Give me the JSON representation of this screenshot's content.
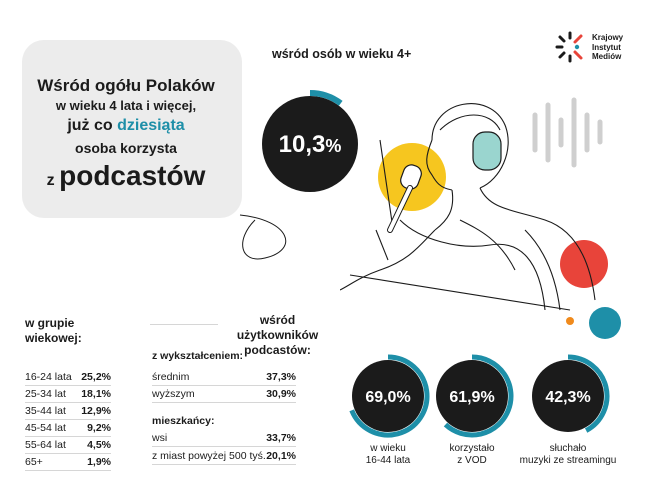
{
  "logo": {
    "name_lines": [
      "Krajowy",
      "Instytut",
      "Mediów"
    ],
    "icon": "kim-logo-icon"
  },
  "headline": {
    "line1": "Wśród ogółu Polaków",
    "line2": "w wieku 4 lata i więcej,",
    "line3_prefix": "już co ",
    "line3_accent": "dziesiąta",
    "line4": "osoba korzysta",
    "line5_prefix": "z ",
    "line5_main": "podcastów"
  },
  "main_stat": {
    "label": "wśród osób w wieku 4+",
    "value": "10,3",
    "unit": "%",
    "fraction": 0.103
  },
  "age_group": {
    "title_lines": [
      "w grupie",
      "wiekowej:"
    ]
  },
  "users_section": {
    "title_lines": [
      "wśród użytkowników",
      "podcastów:"
    ],
    "education_title": "z wykształceniem:",
    "residence_title": "mieszkańcy:"
  },
  "chart_data": [
    {
      "type": "table",
      "title": "w grupie wiekowej:",
      "categories": [
        "16-24 lata",
        "25-34 lat",
        "35-44 lat",
        "45-54 lat",
        "55-64 lat",
        "65+"
      ],
      "values": [
        "25,2%",
        "18,1%",
        "12,9%",
        "9,2%",
        "4,5%",
        "1,9%"
      ]
    },
    {
      "type": "table",
      "title": "z wykształceniem:",
      "categories": [
        "średnim",
        "wyższym"
      ],
      "values": [
        "37,3%",
        "30,9%"
      ]
    },
    {
      "type": "table",
      "title": "mieszkańcy:",
      "categories": [
        "wsi",
        "z miast powyżej 500 tyś."
      ],
      "values": [
        "33,7%",
        "20,1%"
      ]
    },
    {
      "type": "pie",
      "title": "wśród użytkowników podcastów:",
      "items": [
        {
          "value": "69,0%",
          "fraction": 0.69,
          "caption_lines": [
            "w wieku",
            "16-44 lata"
          ]
        },
        {
          "value": "61,9%",
          "fraction": 0.619,
          "caption_lines": [
            "korzystało",
            "z VOD"
          ]
        },
        {
          "value": "42,3%",
          "fraction": 0.423,
          "caption_lines": [
            "słuchało",
            "muzyki ze streamingu"
          ]
        }
      ]
    }
  ],
  "colors": {
    "accent": "#1e8fa8",
    "dark": "#1b1b1b",
    "yellow": "#f6c61f",
    "red": "#e8443a",
    "bubble": "#ececec",
    "orange": "#f08a1c"
  }
}
